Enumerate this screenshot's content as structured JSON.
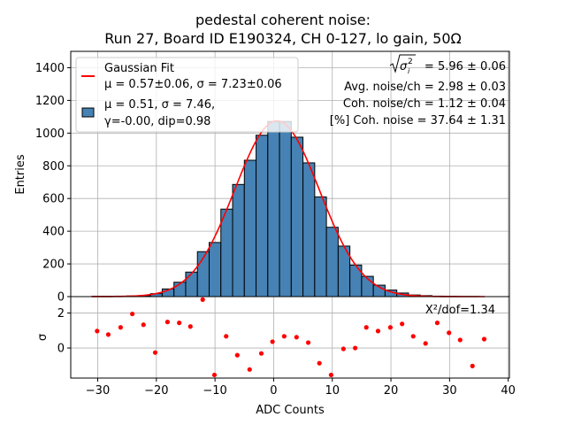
{
  "chart_data": {
    "type": "bar",
    "title_line1": "pedestal coherent noise:",
    "title_line2": "Run 27, Board ID E190324, CH 0-127, lo gain, 50Ω",
    "xlabel": "ADC Counts",
    "ylabel": "Entries",
    "residual_ylabel": "σ",
    "xlim": [
      -34.6,
      40.2
    ],
    "ylim": [
      0,
      1500
    ],
    "residual_ylim": [
      -1.72,
      2.94
    ],
    "grid": true,
    "x_ticks": [
      -30,
      -20,
      -10,
      0,
      10,
      20,
      30,
      40
    ],
    "x_tick_labels": [
      "−30",
      "−20",
      "−10",
      "0",
      "10",
      "20",
      "30",
      "40"
    ],
    "y_ticks": [
      0,
      200,
      400,
      600,
      800,
      1000,
      1200,
      1400
    ],
    "y_tick_labels": [
      "0",
      "200",
      "400",
      "600",
      "800",
      "1000",
      "1200",
      "1400"
    ],
    "residual_y_ticks": [
      0,
      2
    ],
    "residual_y_tick_labels": [
      "0",
      "2"
    ],
    "histogram": {
      "bin_edges": [
        -31,
        -29,
        -27,
        -25,
        -23,
        -21,
        -19,
        -17,
        -15,
        -13,
        -11,
        -9,
        -7,
        -5,
        -3,
        -1,
        1,
        3,
        5,
        7,
        9,
        11,
        13,
        15,
        17,
        19,
        21,
        23,
        25,
        27,
        29,
        31,
        33,
        35,
        37
      ],
      "counts": [
        2,
        2,
        3,
        4,
        6,
        18,
        47,
        88,
        150,
        275,
        331,
        535,
        686,
        834,
        987,
        1071,
        1071,
        975,
        818,
        610,
        424,
        309,
        193,
        124,
        70,
        40,
        22,
        10,
        6,
        3,
        2,
        1,
        1,
        0
      ],
      "color": "#4682b4",
      "edge_color": "#000000"
    },
    "fit": {
      "type": "gaussian",
      "mu": 0.57,
      "sigma": 7.23,
      "amplitude": 1075,
      "x_range": [
        -31,
        36
      ],
      "color": "#ff0000"
    },
    "residuals": {
      "x": [
        -30.1,
        -28.2,
        -26.1,
        -24.1,
        -22.2,
        -20.2,
        -18.1,
        -16.1,
        -14.2,
        -12.1,
        -10.1,
        -8.1,
        -6.2,
        -4.1,
        -2.1,
        -0.2,
        1.8,
        3.9,
        5.9,
        7.8,
        9.8,
        11.9,
        13.9,
        15.8,
        17.8,
        19.9,
        21.9,
        23.8,
        25.9,
        27.9,
        29.9,
        31.8,
        33.9,
        35.9
      ],
      "y": [
        0.97,
        0.77,
        1.18,
        1.95,
        1.33,
        -0.26,
        1.49,
        1.44,
        1.23,
        2.77,
        -1.54,
        0.67,
        -0.41,
        -1.23,
        -0.31,
        0.36,
        0.67,
        0.62,
        0.31,
        -0.87,
        -1.54,
        -0.05,
        0.0,
        1.18,
        0.97,
        1.18,
        1.38,
        0.67,
        0.26,
        1.44,
        0.87,
        0.46,
        -1.03,
        0.51
      ],
      "color": "#ff0000"
    },
    "legend": {
      "placement": "top-left",
      "entries": [
        {
          "label_line1": "Gaussian Fit",
          "label_line2": "μ = 0.57±0.06, σ = 7.23±0.06",
          "marker": "line"
        },
        {
          "label_line1": "μ = 0.51, σ = 7.46,",
          "label_line2": "γ=-0.00, dip=0.98",
          "marker": "patch"
        }
      ]
    },
    "annotations": {
      "sigma_label": "= 5.96 ± 0.06",
      "avg_noise": "Avg. noise/ch = 2.98 ± 0.03",
      "coh_noise": "Coh. noise/ch = 1.12 ± 0.04",
      "coh_percent": "[%] Coh. noise = 37.64  ± 1.31",
      "chi2": "X²/dof=1.34"
    }
  }
}
